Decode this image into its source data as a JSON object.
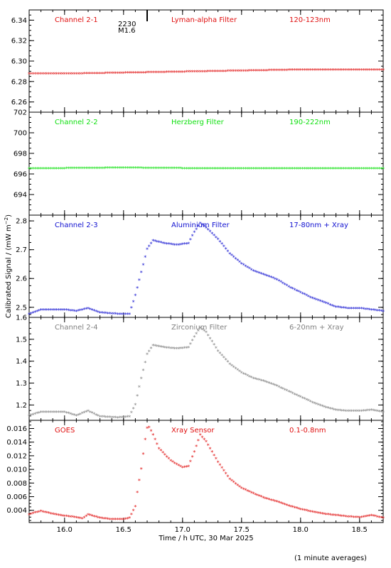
{
  "ylabel": "Calibrated Signal  / (mW m",
  "ylabel_sup": "−2",
  "ylabel_end": ")",
  "xlabel": "Time / h UTC, 30 Mar 2025",
  "footer": "(1 minute averages)",
  "xlim": [
    15.7,
    18.7
  ],
  "xticks": [
    "16.0",
    "16.5",
    "17.0",
    "17.5",
    "18.0",
    "18.5"
  ],
  "flare_marker": {
    "x": 16.7,
    "time": "2230",
    "class": "M1.6"
  },
  "chart_data": [
    {
      "type": "scatter",
      "labels": [
        "Channel 2-1",
        "Lyman-alpha Filter",
        "120-123nm"
      ],
      "color": "#e01010",
      "ylim": [
        6.25,
        6.35
      ],
      "yticks": [
        "6.26",
        "6.28",
        "6.30",
        "6.32",
        "6.34"
      ],
      "x": [
        15.7,
        16.0,
        16.5,
        17.0,
        17.5,
        18.0,
        18.7
      ],
      "y": [
        6.287,
        6.287,
        6.288,
        6.289,
        6.29,
        6.291,
        6.291
      ]
    },
    {
      "type": "scatter",
      "labels": [
        "Channel 2-2",
        "Herzberg Filter",
        "190-222nm"
      ],
      "color": "#10e010",
      "ylim": [
        692,
        702
      ],
      "yticks": [
        "694",
        "696",
        "698",
        "700",
        "702"
      ],
      "x": [
        15.7,
        16.0,
        16.5,
        17.0,
        17.5,
        18.0,
        18.7
      ],
      "y": [
        696.5,
        696.5,
        696.55,
        696.5,
        696.5,
        696.5,
        696.5
      ]
    },
    {
      "type": "scatter",
      "labels": [
        "Channel 2-3",
        "Aluminium Filter",
        "17-80nm + Xray"
      ],
      "color": "#1010d0",
      "ylim": [
        2.465,
        2.82
      ],
      "yticks": [
        "2.5",
        "2.6",
        "2.7",
        "2.8"
      ],
      "x": [
        15.7,
        15.8,
        16.0,
        16.1,
        16.2,
        16.3,
        16.45,
        16.55,
        16.6,
        16.65,
        16.7,
        16.75,
        16.85,
        16.95,
        17.05,
        17.1,
        17.15,
        17.2,
        17.3,
        17.4,
        17.5,
        17.6,
        17.7,
        17.8,
        17.9,
        18.0,
        18.1,
        18.2,
        18.3,
        18.4,
        18.5,
        18.6,
        18.7
      ],
      "y": [
        2.475,
        2.49,
        2.49,
        2.485,
        2.495,
        2.48,
        2.475,
        2.475,
        2.54,
        2.62,
        2.7,
        2.73,
        2.72,
        2.715,
        2.72,
        2.76,
        2.79,
        2.775,
        2.735,
        2.685,
        2.65,
        2.625,
        2.61,
        2.595,
        2.57,
        2.55,
        2.53,
        2.515,
        2.5,
        2.495,
        2.495,
        2.49,
        2.485
      ]
    },
    {
      "type": "scatter",
      "labels": [
        "Channel 2-4",
        "Zirconium Filter",
        "6-20nm + Xray"
      ],
      "color": "#808080",
      "ylim": [
        1.13,
        1.6
      ],
      "yticks": [
        "1.2",
        "1.3",
        "1.4",
        "1.5",
        "1.6"
      ],
      "x": [
        15.7,
        15.8,
        16.0,
        16.1,
        16.2,
        16.3,
        16.45,
        16.55,
        16.6,
        16.65,
        16.7,
        16.75,
        16.85,
        16.95,
        17.05,
        17.1,
        17.15,
        17.2,
        17.3,
        17.4,
        17.5,
        17.6,
        17.7,
        17.8,
        17.9,
        18.0,
        18.1,
        18.2,
        18.3,
        18.4,
        18.5,
        18.6,
        18.7
      ],
      "y": [
        1.15,
        1.165,
        1.165,
        1.15,
        1.17,
        1.145,
        1.14,
        1.145,
        1.2,
        1.32,
        1.43,
        1.47,
        1.46,
        1.455,
        1.46,
        1.51,
        1.55,
        1.53,
        1.445,
        1.385,
        1.345,
        1.32,
        1.305,
        1.285,
        1.26,
        1.235,
        1.21,
        1.19,
        1.175,
        1.17,
        1.17,
        1.175,
        1.165
      ]
    },
    {
      "type": "scatter",
      "labels": [
        "GOES",
        "Xray Sensor",
        "0.1-0.8nm"
      ],
      "color": "#e01010",
      "ylim": [
        0.0022,
        0.0172
      ],
      "yticks": [
        "0.004",
        "0.006",
        "0.008",
        "0.010",
        "0.012",
        "0.014",
        "0.016"
      ],
      "x": [
        15.7,
        15.75,
        15.8,
        15.9,
        16.0,
        16.1,
        16.15,
        16.2,
        16.3,
        16.4,
        16.5,
        16.55,
        16.6,
        16.62,
        16.65,
        16.68,
        16.7,
        16.72,
        16.75,
        16.8,
        16.9,
        17.0,
        17.05,
        17.1,
        17.15,
        17.2,
        17.3,
        17.4,
        17.5,
        17.6,
        17.7,
        17.8,
        17.9,
        18.0,
        18.1,
        18.2,
        18.3,
        18.4,
        18.5,
        18.6,
        18.7
      ],
      "y": [
        0.0033,
        0.0036,
        0.0038,
        0.0034,
        0.0031,
        0.0029,
        0.0027,
        0.0033,
        0.0028,
        0.0026,
        0.0026,
        0.0028,
        0.0045,
        0.007,
        0.01,
        0.014,
        0.016,
        0.0161,
        0.015,
        0.013,
        0.0112,
        0.0102,
        0.0104,
        0.0125,
        0.015,
        0.014,
        0.011,
        0.0085,
        0.0072,
        0.0064,
        0.0057,
        0.0052,
        0.0046,
        0.0041,
        0.0037,
        0.0034,
        0.0032,
        0.003,
        0.0029,
        0.0032,
        0.0028
      ]
    }
  ]
}
